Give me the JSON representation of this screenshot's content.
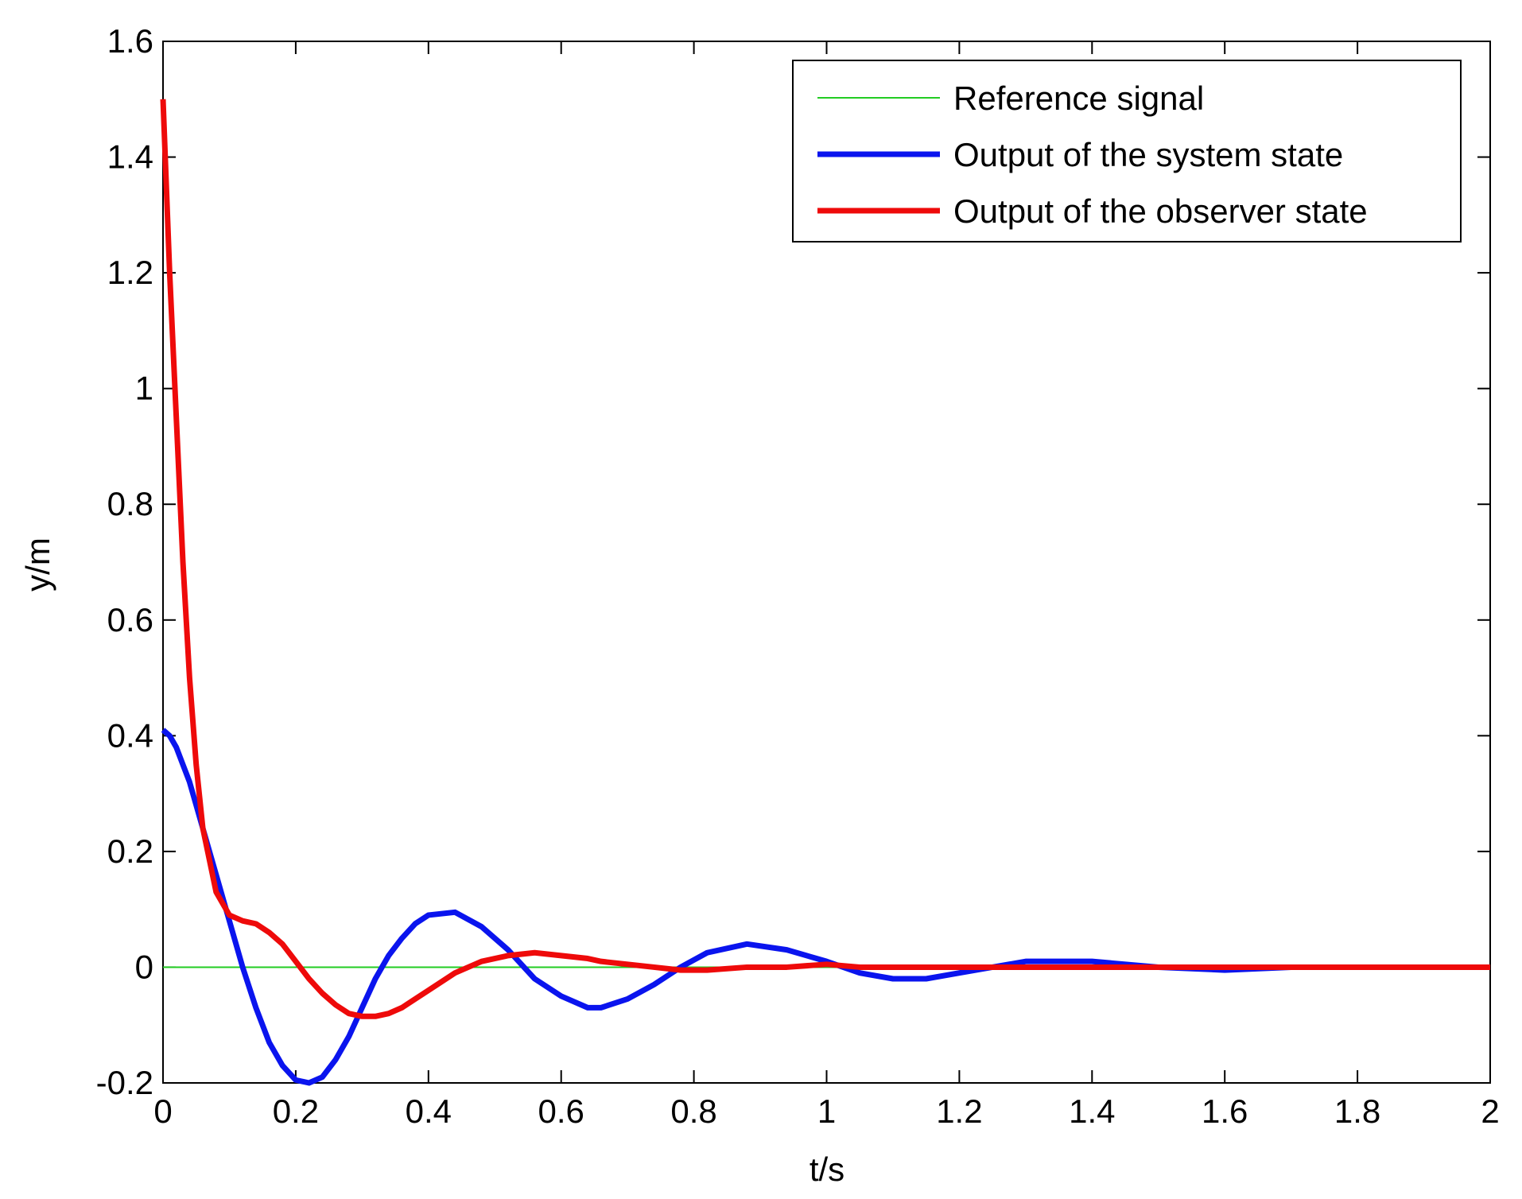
{
  "chart_data": {
    "type": "line",
    "xlabel": "t/s",
    "ylabel": "y/m",
    "x": [
      0,
      0.01,
      0.02,
      0.03,
      0.04,
      0.05,
      0.06,
      0.08,
      0.1,
      0.12,
      0.14,
      0.16,
      0.18,
      0.2,
      0.22,
      0.24,
      0.26,
      0.28,
      0.3,
      0.32,
      0.34,
      0.36,
      0.38,
      0.4,
      0.44,
      0.48,
      0.52,
      0.56,
      0.6,
      0.64,
      0.66,
      0.7,
      0.74,
      0.78,
      0.82,
      0.88,
      0.94,
      1.0,
      1.05,
      1.1,
      1.15,
      1.2,
      1.3,
      1.4,
      1.5,
      1.6,
      1.7,
      1.8,
      1.9,
      2.0
    ],
    "series": [
      {
        "name": "Reference signal",
        "color": "#22cc22",
        "width": 2,
        "values": [
          0,
          0,
          0,
          0,
          0,
          0,
          0,
          0,
          0,
          0,
          0,
          0,
          0,
          0,
          0,
          0,
          0,
          0,
          0,
          0,
          0,
          0,
          0,
          0,
          0,
          0,
          0,
          0,
          0,
          0,
          0,
          0,
          0,
          0,
          0,
          0,
          0,
          0,
          0,
          0,
          0,
          0,
          0,
          0,
          0,
          0,
          0,
          0,
          0,
          0
        ]
      },
      {
        "name": "Output of the system state",
        "color": "#0a14ee",
        "width": 7,
        "values": [
          0.41,
          0.4,
          0.38,
          0.35,
          0.32,
          0.28,
          0.24,
          0.16,
          0.08,
          0.0,
          -0.07,
          -0.13,
          -0.17,
          -0.195,
          -0.2,
          -0.19,
          -0.16,
          -0.12,
          -0.07,
          -0.02,
          0.02,
          0.05,
          0.075,
          0.09,
          0.095,
          0.07,
          0.03,
          -0.02,
          -0.05,
          -0.07,
          -0.07,
          -0.055,
          -0.03,
          0.0,
          0.025,
          0.04,
          0.03,
          0.01,
          -0.01,
          -0.02,
          -0.02,
          -0.01,
          0.01,
          0.01,
          0,
          -0.005,
          0,
          0,
          0,
          0
        ]
      },
      {
        "name": "Output of the observer state",
        "color": "#ee0a0a",
        "width": 7,
        "values": [
          1.5,
          1.2,
          0.95,
          0.7,
          0.5,
          0.35,
          0.24,
          0.13,
          0.09,
          0.08,
          0.075,
          0.06,
          0.04,
          0.01,
          -0.02,
          -0.045,
          -0.065,
          -0.08,
          -0.085,
          -0.085,
          -0.08,
          -0.07,
          -0.055,
          -0.04,
          -0.01,
          0.01,
          0.02,
          0.025,
          0.02,
          0.015,
          0.01,
          0.005,
          0,
          -0.005,
          -0.005,
          0,
          0,
          0.005,
          0,
          0,
          0,
          0,
          0,
          0,
          0,
          0,
          0,
          0,
          0,
          0
        ]
      }
    ],
    "xlim": [
      0,
      2
    ],
    "xticks": [
      0,
      0.2,
      0.4,
      0.6,
      0.8,
      1,
      1.2,
      1.4,
      1.6,
      1.8,
      2
    ],
    "ylim": [
      -0.2,
      1.6
    ],
    "yticks": [
      -0.2,
      0,
      0.2,
      0.4,
      0.6,
      0.8,
      1,
      1.2,
      1.4,
      1.6
    ],
    "grid": false,
    "legend": "upper right"
  }
}
